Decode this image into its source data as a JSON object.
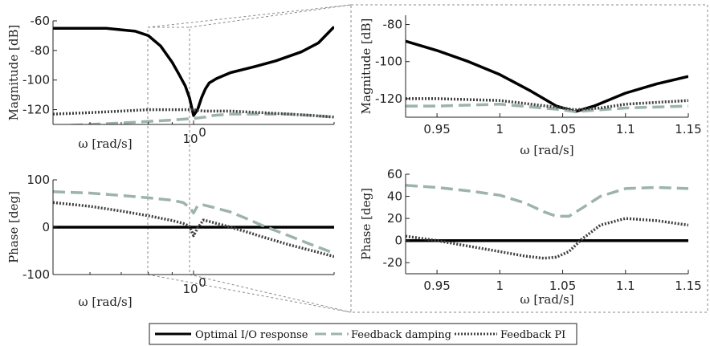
{
  "chart_data": [
    {
      "panel": "magnitude-full",
      "type": "line",
      "xscale": "log",
      "xlim": [
        0.5,
        2.0
      ],
      "ylim": [
        -130,
        -60
      ],
      "yticks": [
        -60,
        -80,
        -100,
        -120
      ],
      "xticks": [
        {
          "value": 1.0,
          "base": "10",
          "exp": "0"
        }
      ],
      "xlabel": "ω [rad/s]",
      "ylabel": "Magnitude [dB]",
      "series": [
        {
          "name": "Optimal I/O response",
          "x": [
            0.5,
            0.55,
            0.6,
            0.65,
            0.7,
            0.75,
            0.8,
            0.85,
            0.9,
            0.93,
            0.96,
            0.98,
            1.0,
            1.02,
            1.04,
            1.06,
            1.08,
            1.12,
            1.2,
            1.35,
            1.5,
            1.7,
            1.85,
            2.0
          ],
          "y": [
            -65,
            -65,
            -65,
            -65,
            -66,
            -67,
            -70,
            -77,
            -88,
            -96,
            -104,
            -112,
            -124,
            -120,
            -112,
            -106,
            -102,
            -99,
            -95,
            -91,
            -87,
            -81,
            -75,
            -64
          ]
        },
        {
          "name": "Feedback damping",
          "x": [
            0.5,
            0.6,
            0.7,
            0.8,
            0.9,
            1.0,
            1.06,
            1.1,
            1.2,
            1.4,
            1.6,
            1.8,
            2.0
          ],
          "y": [
            -131,
            -130,
            -129,
            -128,
            -127,
            -126,
            -125,
            -124,
            -123,
            -123,
            -123,
            -124,
            -125
          ]
        },
        {
          "name": "Feedback PI",
          "x": [
            0.5,
            0.6,
            0.7,
            0.8,
            0.9,
            1.0,
            1.05,
            1.1,
            1.2,
            1.4,
            1.6,
            1.8,
            2.0
          ],
          "y": [
            -123,
            -122,
            -121,
            -120,
            -120,
            -120,
            -121,
            -121,
            -121,
            -122,
            -123,
            -124,
            -125
          ]
        }
      ]
    },
    {
      "panel": "phase-full",
      "type": "line",
      "xscale": "log",
      "xlim": [
        0.5,
        2.0
      ],
      "ylim": [
        -100,
        100
      ],
      "yticks": [
        100,
        0,
        -100
      ],
      "xticks": [
        {
          "value": 1.0,
          "base": "10",
          "exp": "0"
        }
      ],
      "xlabel": "ω [rad/s]",
      "ylabel": "Phase [deg]",
      "series": [
        {
          "name": "Optimal I/O response",
          "x": [
            0.5,
            2.0
          ],
          "y": [
            0,
            0
          ]
        },
        {
          "name": "Feedback damping",
          "x": [
            0.5,
            0.6,
            0.7,
            0.8,
            0.9,
            0.95,
            0.98,
            1.0,
            1.02,
            1.05,
            1.1,
            1.2,
            1.3,
            1.4,
            1.6,
            1.8,
            2.0
          ],
          "y": [
            75,
            72,
            67,
            62,
            57,
            52,
            42,
            30,
            45,
            47,
            42,
            32,
            18,
            4,
            -18,
            -38,
            -55
          ]
        },
        {
          "name": "Feedback PI",
          "x": [
            0.5,
            0.6,
            0.7,
            0.8,
            0.9,
            0.95,
            0.98,
            1.0,
            1.02,
            1.05,
            1.1,
            1.2,
            1.3,
            1.4,
            1.6,
            1.8,
            2.0
          ],
          "y": [
            52,
            44,
            34,
            24,
            14,
            8,
            2,
            -18,
            -2,
            15,
            10,
            0,
            -10,
            -20,
            -37,
            -50,
            -62
          ]
        }
      ]
    },
    {
      "panel": "magnitude-zoom",
      "type": "line",
      "xlim": [
        0.925,
        1.15
      ],
      "ylim": [
        -130,
        -75
      ],
      "xticks": [
        0.95,
        1,
        1.05,
        1.1,
        1.15
      ],
      "yticks": [
        -80,
        -100,
        -120
      ],
      "xlabel": "ω [rad/s]",
      "ylabel": "Magnitude [dB]",
      "series": [
        {
          "name": "Optimal I/O response",
          "x": [
            0.925,
            0.95,
            0.975,
            1.0,
            1.025,
            1.045,
            1.06,
            1.075,
            1.1,
            1.125,
            1.15
          ],
          "y": [
            -89,
            -94,
            -100,
            -107,
            -116,
            -124,
            -127,
            -124,
            -117,
            -112,
            -108
          ]
        },
        {
          "name": "Feedback damping",
          "x": [
            0.925,
            0.95,
            1.0,
            1.05,
            1.06,
            1.08,
            1.1,
            1.15
          ],
          "y": [
            -124,
            -124,
            -123,
            -126,
            -127,
            -126,
            -125,
            -124
          ]
        },
        {
          "name": "Feedback PI",
          "x": [
            0.925,
            0.95,
            1.0,
            1.05,
            1.06,
            1.08,
            1.1,
            1.15
          ],
          "y": [
            -120,
            -120,
            -121,
            -125,
            -126,
            -125,
            -123,
            -121
          ]
        }
      ]
    },
    {
      "panel": "phase-zoom",
      "type": "line",
      "xlim": [
        0.925,
        1.15
      ],
      "ylim": [
        -30,
        60
      ],
      "xticks": [
        0.95,
        1,
        1.05,
        1.1,
        1.15
      ],
      "yticks": [
        60,
        40,
        20,
        0,
        -20
      ],
      "xlabel": "ω [rad/s]",
      "ylabel": "Phase [deg]",
      "series": [
        {
          "name": "Optimal I/O response",
          "x": [
            0.925,
            1.15
          ],
          "y": [
            0,
            0
          ]
        },
        {
          "name": "Feedback damping",
          "x": [
            0.925,
            0.95,
            0.975,
            1.0,
            1.02,
            1.035,
            1.045,
            1.055,
            1.065,
            1.08,
            1.1,
            1.125,
            1.15
          ],
          "y": [
            50,
            48,
            45,
            41,
            34,
            26,
            22,
            22,
            29,
            40,
            47,
            48,
            47
          ]
        },
        {
          "name": "Feedback PI",
          "x": [
            0.925,
            0.95,
            0.975,
            1.0,
            1.02,
            1.035,
            1.045,
            1.055,
            1.065,
            1.08,
            1.1,
            1.125,
            1.15
          ],
          "y": [
            4,
            0,
            -5,
            -10,
            -14,
            -16,
            -15,
            -10,
            1,
            14,
            20,
            18,
            14
          ]
        }
      ]
    }
  ],
  "legend": {
    "position": "bottom",
    "items": [
      {
        "label": "Optimal I/O response",
        "color": "#000000",
        "style": "solid"
      },
      {
        "label": "Feedback damping",
        "color": "#9db3ac",
        "style": "dashed"
      },
      {
        "label": "Feedback PI",
        "color": "#3f3f3f",
        "style": "dotted"
      }
    ]
  },
  "colors": {
    "optimal": "#000000",
    "damping": "#9db3ac",
    "pi": "#3f3f3f",
    "zoom_lines": "#888888"
  }
}
